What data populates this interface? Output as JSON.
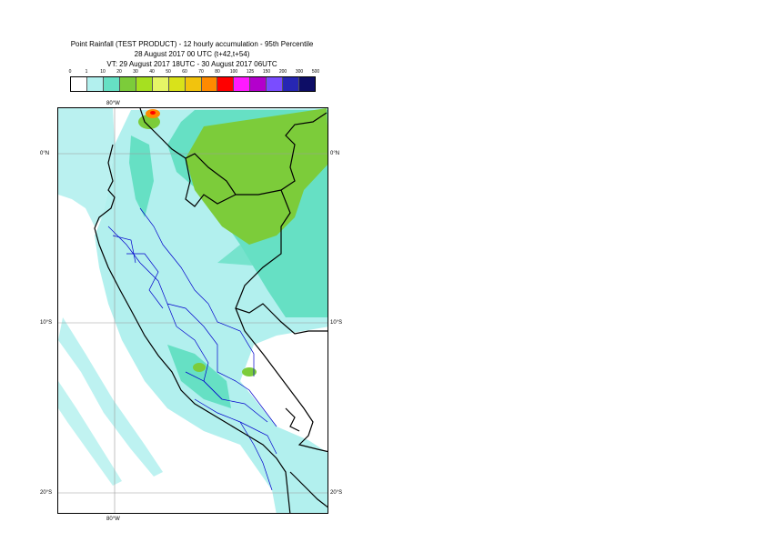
{
  "header": {
    "title_line1": "Point Rainfall (TEST PRODUCT) - 12 hourly accumulation - 95th Percentile",
    "title_line2": "28 August 2017 00 UTC (t+42,t+54)",
    "title_line3": "VT: 29 August 2017 18UTC - 30 August 2017 06UTC"
  },
  "legend": {
    "thresholds": [
      "0",
      "1",
      "10",
      "20",
      "30",
      "40",
      "50",
      "60",
      "70",
      "80",
      "100",
      "125",
      "150",
      "200",
      "300",
      "500"
    ],
    "colors": [
      "#ffffff",
      "#b2f0ee",
      "#66e0c4",
      "#7ccc3a",
      "#a6e020",
      "#e6f566",
      "#d9e21a",
      "#f2c30d",
      "#ff8a00",
      "#ff0000",
      "#ff1aff",
      "#b300cc",
      "#7a4dff",
      "#2626b3",
      "#0d0d66"
    ]
  },
  "map": {
    "lat_labels": [
      "0°N",
      "10°S",
      "20°S"
    ],
    "lon_labels": [
      "80°W",
      "80°W"
    ],
    "fill_colors": {
      "land_base": "#b2f0ee",
      "light": "#66e0c4",
      "medium": "#7ccc3a",
      "heavy": "#ff8a00",
      "peak": "#ff0000"
    },
    "line_colors": {
      "country": "#000000",
      "region": "#0000cc",
      "grid": "#999999"
    }
  }
}
